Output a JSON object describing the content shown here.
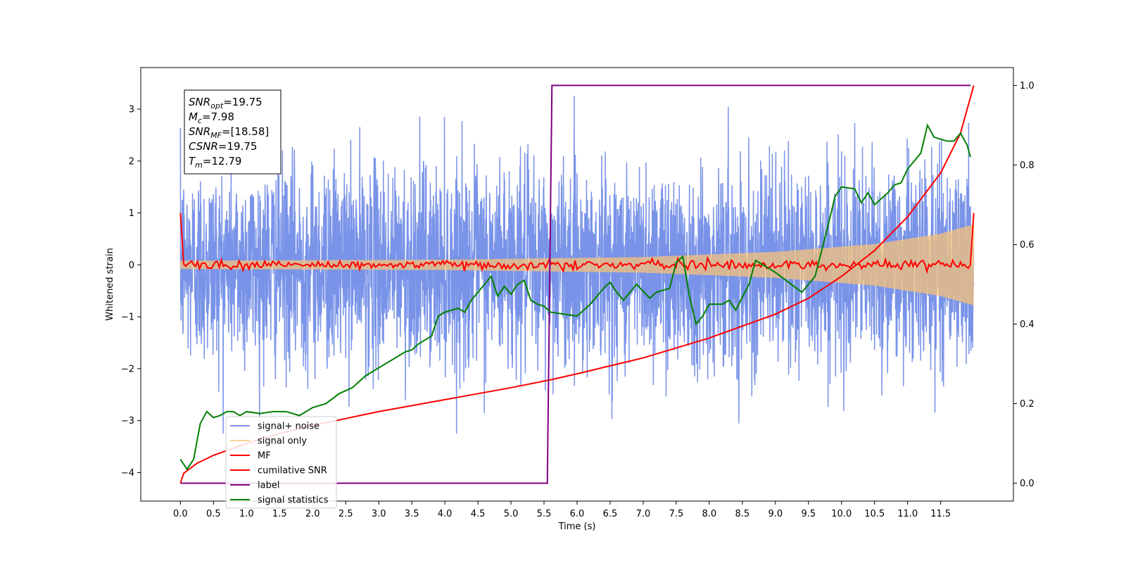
{
  "chart_data": {
    "type": "line",
    "title": "",
    "xlabel": "Time (s)",
    "ylabel": "Whitened strain",
    "xlim": [
      -0.6,
      12.6
    ],
    "ylim": [
      -4.55,
      3.8
    ],
    "y2lim": [
      -0.045,
      1.045
    ],
    "grid": false,
    "legend_position": "lower-left",
    "x_ticks": [
      0.0,
      0.5,
      1.0,
      1.5,
      2.0,
      2.5,
      3.0,
      3.5,
      4.0,
      4.5,
      5.0,
      5.5,
      6.0,
      6.5,
      7.0,
      7.5,
      8.0,
      8.5,
      9.0,
      9.5,
      10.0,
      10.5,
      11.0,
      11.5
    ],
    "y_ticks": [
      -4,
      -3,
      -2,
      -1,
      0,
      1,
      2,
      3
    ],
    "y2_ticks": [
      0.0,
      0.2,
      0.4,
      0.6,
      0.8,
      1.0
    ],
    "annotation": {
      "lines": [
        {
          "name": "SNR",
          "sub": "opt",
          "value": "=19.75"
        },
        {
          "name": "M",
          "sub": "c",
          "value": "=7.98"
        },
        {
          "name": "SNR",
          "sub": "MF",
          "value": "=[18.58]"
        },
        {
          "name": "CSNR",
          "sub": "",
          "value": "=19.75"
        },
        {
          "name": "T",
          "sub": "m",
          "value": "=12.79"
        }
      ]
    },
    "series": [
      {
        "name": "signal+ noise",
        "color": "#6a87e6",
        "axis": "left",
        "kind": "noise",
        "amplitude_range": [
          -3.25,
          3.5
        ],
        "x_range": [
          0.0,
          12.0
        ]
      },
      {
        "name": "signal only",
        "color": "#f5c27a",
        "axis": "left",
        "kind": "chirp",
        "envelope": {
          "x": [
            0.0,
            4.0,
            7.0,
            9.0,
            10.5,
            11.5,
            12.0
          ],
          "amp": [
            0.08,
            0.1,
            0.15,
            0.25,
            0.4,
            0.6,
            0.78
          ]
        }
      },
      {
        "name": "MF",
        "color": "#ff0000",
        "axis": "left",
        "kind": "mf",
        "endpoints": [
          [
            0.0,
            1.0
          ],
          [
            12.0,
            1.0
          ]
        ],
        "baseline": 0.0
      },
      {
        "name": "cumilative SNR",
        "color": "#ff0000",
        "axis": "right",
        "x": [
          0.0,
          0.05,
          0.25,
          0.5,
          1.0,
          1.5,
          2.0,
          3.0,
          4.0,
          5.0,
          5.6,
          6.0,
          7.0,
          8.0,
          9.0,
          9.5,
          10.0,
          10.5,
          11.0,
          11.5,
          11.8,
          12.0
        ],
        "values": [
          0.0,
          0.025,
          0.05,
          0.07,
          0.1,
          0.125,
          0.145,
          0.18,
          0.21,
          0.24,
          0.26,
          0.275,
          0.315,
          0.365,
          0.425,
          0.465,
          0.52,
          0.585,
          0.67,
          0.78,
          0.88,
          1.0
        ]
      },
      {
        "name": "label",
        "color": "#800080",
        "axis": "right",
        "x": [
          0.0,
          5.55,
          5.62,
          11.95
        ],
        "values": [
          0.0,
          0.0,
          1.0,
          1.0
        ]
      },
      {
        "name": "signal statistics",
        "color": "#008000",
        "axis": "right",
        "x": [
          0.0,
          0.1,
          0.2,
          0.3,
          0.4,
          0.5,
          0.6,
          0.7,
          0.8,
          0.9,
          1.0,
          1.2,
          1.4,
          1.6,
          1.8,
          2.0,
          2.2,
          2.4,
          2.6,
          2.8,
          3.0,
          3.2,
          3.4,
          3.5,
          3.6,
          3.8,
          3.9,
          4.0,
          4.2,
          4.3,
          4.4,
          4.5,
          4.6,
          4.7,
          4.8,
          4.9,
          5.0,
          5.1,
          5.2,
          5.3,
          5.4,
          5.5,
          5.6,
          5.8,
          6.0,
          6.2,
          6.4,
          6.5,
          6.6,
          6.7,
          6.9,
          7.1,
          7.2,
          7.4,
          7.5,
          7.6,
          7.7,
          7.8,
          7.9,
          8.0,
          8.2,
          8.3,
          8.4,
          8.6,
          8.7,
          8.8,
          9.0,
          9.2,
          9.4,
          9.6,
          9.8,
          9.9,
          10.0,
          10.2,
          10.3,
          10.4,
          10.5,
          10.7,
          10.8,
          10.9,
          11.0,
          11.2,
          11.3,
          11.4,
          11.6,
          11.7,
          11.8,
          11.9,
          11.95
        ],
        "values": [
          0.06,
          0.035,
          0.06,
          0.15,
          0.18,
          0.165,
          0.17,
          0.18,
          0.18,
          0.17,
          0.18,
          0.175,
          0.18,
          0.18,
          0.17,
          0.19,
          0.2,
          0.225,
          0.24,
          0.27,
          0.29,
          0.31,
          0.33,
          0.335,
          0.35,
          0.37,
          0.42,
          0.43,
          0.44,
          0.43,
          0.46,
          0.48,
          0.5,
          0.52,
          0.47,
          0.495,
          0.475,
          0.5,
          0.51,
          0.46,
          0.45,
          0.445,
          0.43,
          0.425,
          0.42,
          0.45,
          0.49,
          0.505,
          0.48,
          0.46,
          0.5,
          0.465,
          0.48,
          0.49,
          0.555,
          0.57,
          0.47,
          0.4,
          0.42,
          0.45,
          0.45,
          0.46,
          0.435,
          0.5,
          0.56,
          0.55,
          0.53,
          0.505,
          0.48,
          0.52,
          0.65,
          0.72,
          0.745,
          0.74,
          0.705,
          0.73,
          0.7,
          0.73,
          0.75,
          0.755,
          0.79,
          0.83,
          0.9,
          0.87,
          0.86,
          0.86,
          0.88,
          0.85,
          0.82
        ]
      }
    ]
  }
}
